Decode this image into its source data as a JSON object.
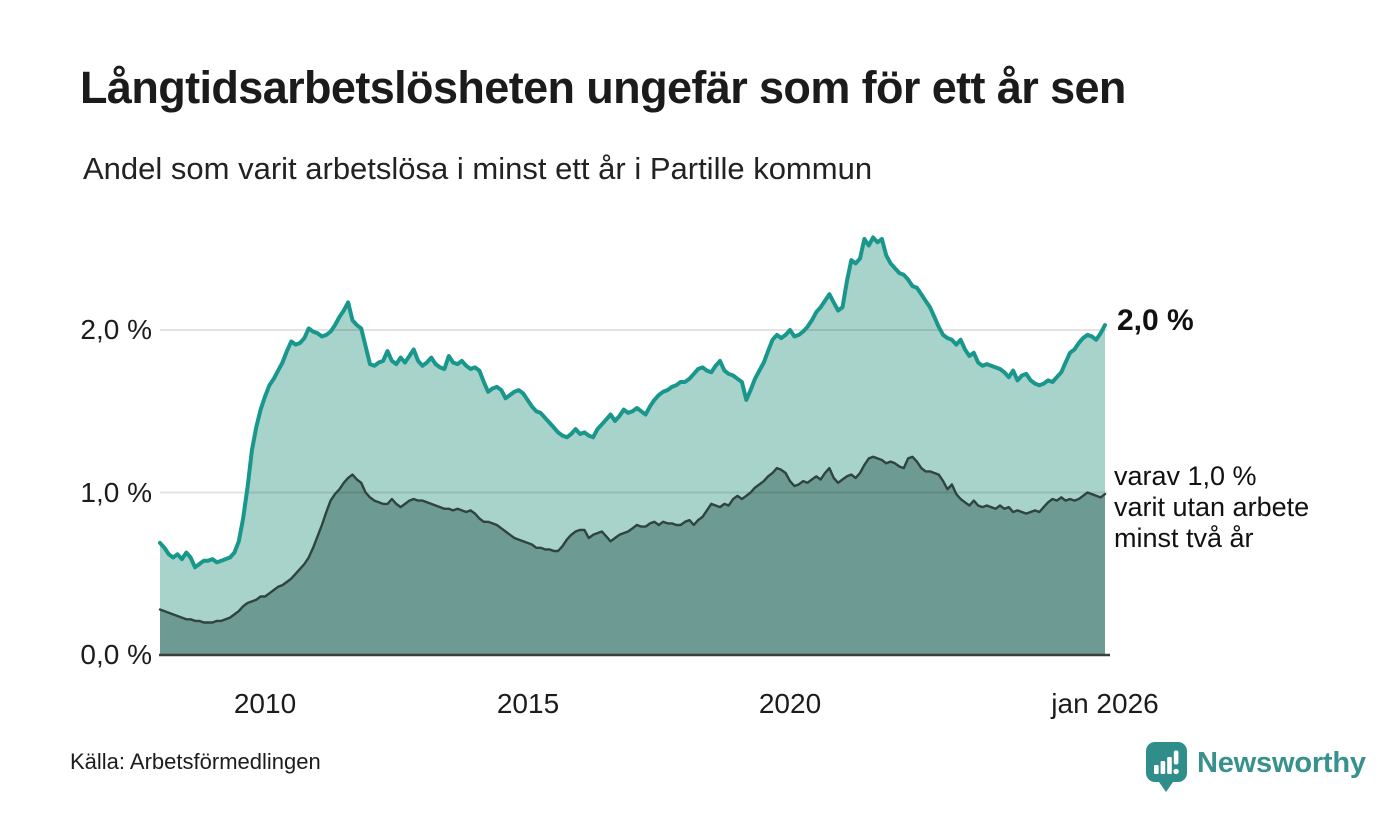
{
  "header": {
    "title": "Långtidsarbetslösheten ungefär som för ett år sen",
    "subtitle": "Andel som varit arbetslösa i minst ett år i Partille kommun"
  },
  "annotations": {
    "latest_value_label": "2,0 %",
    "secondary_label_lines": [
      "varav 1,0 %",
      "varit utan arbete",
      "minst två år"
    ]
  },
  "footer": {
    "source": "Källa: Arbetsförmedlingen",
    "brand": "Newsworthy"
  },
  "colors": {
    "primary_line": "#1a978c",
    "primary_fill": "#a8d3cb",
    "secondary_line": "#2f443e",
    "secondary_fill": "#6d9a92",
    "gridline": "#e3e3e3",
    "axis": "#3d3d3d",
    "text": "#1c1c1c",
    "brand_teal": "#38918c"
  },
  "chart_data": {
    "type": "area",
    "title": "Långtidsarbetslösheten ungefär som för ett år sen",
    "subtitle": "Andel som varit arbetslösa i minst ett år i Partille kommun",
    "unit": "%",
    "legend_position": "right-annotations",
    "grid": "horizontal",
    "x_axis": {
      "start_year": 2008,
      "end_year": 2026,
      "step_months": 1,
      "ticks": [
        {
          "year": 2010,
          "label": "2010"
        },
        {
          "year": 2015,
          "label": "2015"
        },
        {
          "year": 2020,
          "label": "2020"
        },
        {
          "year": 2026,
          "label": "jan 2026"
        }
      ]
    },
    "y_axis": {
      "min": 0,
      "max": 2.7,
      "ticks": [
        {
          "value": 0,
          "label": "0,0 %"
        },
        {
          "value": 1,
          "label": "1,0 %"
        },
        {
          "value": 2,
          "label": "2,0 %"
        }
      ],
      "gridlines": [
        1,
        2
      ]
    },
    "series": [
      {
        "id": "minst-ett-ar",
        "name": "Andel arbetslösa i minst ett år",
        "latest_value": 2.0,
        "latest_label": "2,0 %",
        "line_color": "#1a978c",
        "fill_color": "#a8d3cb",
        "values": [
          0.69,
          0.66,
          0.62,
          0.6,
          0.62,
          0.59,
          0.63,
          0.6,
          0.54,
          0.56,
          0.58,
          0.58,
          0.59,
          0.57,
          0.58,
          0.59,
          0.6,
          0.63,
          0.7,
          0.84,
          1.03,
          1.26,
          1.4,
          1.51,
          1.59,
          1.66,
          1.7,
          1.75,
          1.8,
          1.87,
          1.93,
          1.91,
          1.92,
          1.95,
          2.01,
          1.99,
          1.98,
          1.96,
          1.97,
          1.99,
          2.03,
          2.08,
          2.12,
          2.17,
          2.06,
          2.03,
          2.01,
          1.9,
          1.79,
          1.78,
          1.8,
          1.81,
          1.87,
          1.81,
          1.79,
          1.83,
          1.8,
          1.84,
          1.88,
          1.81,
          1.78,
          1.8,
          1.83,
          1.79,
          1.77,
          1.76,
          1.84,
          1.8,
          1.79,
          1.81,
          1.78,
          1.76,
          1.77,
          1.75,
          1.68,
          1.62,
          1.64,
          1.65,
          1.63,
          1.58,
          1.6,
          1.62,
          1.63,
          1.61,
          1.57,
          1.53,
          1.5,
          1.49,
          1.46,
          1.43,
          1.4,
          1.37,
          1.35,
          1.34,
          1.36,
          1.39,
          1.36,
          1.37,
          1.35,
          1.34,
          1.39,
          1.42,
          1.45,
          1.48,
          1.44,
          1.47,
          1.51,
          1.49,
          1.5,
          1.52,
          1.5,
          1.48,
          1.53,
          1.57,
          1.6,
          1.62,
          1.63,
          1.65,
          1.66,
          1.68,
          1.68,
          1.7,
          1.73,
          1.76,
          1.77,
          1.75,
          1.74,
          1.78,
          1.81,
          1.75,
          1.73,
          1.72,
          1.7,
          1.68,
          1.57,
          1.63,
          1.7,
          1.75,
          1.8,
          1.87,
          1.94,
          1.97,
          1.95,
          1.97,
          2.0,
          1.96,
          1.97,
          1.99,
          2.02,
          2.06,
          2.11,
          2.14,
          2.18,
          2.22,
          2.17,
          2.12,
          2.14,
          2.3,
          2.43,
          2.41,
          2.44,
          2.56,
          2.52,
          2.57,
          2.54,
          2.56,
          2.46,
          2.41,
          2.38,
          2.35,
          2.34,
          2.31,
          2.27,
          2.26,
          2.22,
          2.18,
          2.14,
          2.08,
          2.02,
          1.97,
          1.95,
          1.94,
          1.91,
          1.94,
          1.88,
          1.84,
          1.86,
          1.8,
          1.78,
          1.79,
          1.78,
          1.77,
          1.76,
          1.74,
          1.71,
          1.75,
          1.69,
          1.72,
          1.73,
          1.69,
          1.67,
          1.66,
          1.67,
          1.69,
          1.68,
          1.71,
          1.74,
          1.8,
          1.86,
          1.88,
          1.92,
          1.95,
          1.97,
          1.96,
          1.94,
          1.98,
          2.03
        ]
      },
      {
        "id": "minst-tva-ar",
        "name": "varav utan arbete i minst två år",
        "latest_value": 1.0,
        "latest_label": "varav 1,0 % varit utan arbete minst två år",
        "line_color": "#2f443e",
        "fill_color": "#6d9a92",
        "values": [
          0.28,
          0.27,
          0.26,
          0.25,
          0.24,
          0.23,
          0.22,
          0.22,
          0.21,
          0.21,
          0.2,
          0.2,
          0.2,
          0.21,
          0.21,
          0.22,
          0.23,
          0.25,
          0.27,
          0.3,
          0.32,
          0.33,
          0.34,
          0.36,
          0.36,
          0.38,
          0.4,
          0.42,
          0.43,
          0.45,
          0.47,
          0.5,
          0.53,
          0.56,
          0.6,
          0.66,
          0.73,
          0.8,
          0.88,
          0.95,
          0.99,
          1.02,
          1.06,
          1.09,
          1.11,
          1.08,
          1.06,
          1.0,
          0.97,
          0.95,
          0.94,
          0.93,
          0.93,
          0.96,
          0.93,
          0.91,
          0.93,
          0.95,
          0.96,
          0.95,
          0.95,
          0.94,
          0.93,
          0.92,
          0.91,
          0.9,
          0.9,
          0.89,
          0.9,
          0.89,
          0.88,
          0.89,
          0.87,
          0.84,
          0.82,
          0.82,
          0.81,
          0.8,
          0.78,
          0.76,
          0.74,
          0.72,
          0.71,
          0.7,
          0.69,
          0.68,
          0.66,
          0.66,
          0.65,
          0.65,
          0.64,
          0.64,
          0.67,
          0.71,
          0.74,
          0.76,
          0.77,
          0.77,
          0.72,
          0.74,
          0.75,
          0.76,
          0.73,
          0.7,
          0.72,
          0.74,
          0.75,
          0.76,
          0.78,
          0.8,
          0.79,
          0.79,
          0.81,
          0.82,
          0.8,
          0.82,
          0.81,
          0.81,
          0.8,
          0.8,
          0.82,
          0.83,
          0.8,
          0.83,
          0.85,
          0.89,
          0.93,
          0.92,
          0.91,
          0.93,
          0.92,
          0.96,
          0.98,
          0.96,
          0.98,
          1.0,
          1.03,
          1.05,
          1.07,
          1.1,
          1.12,
          1.15,
          1.14,
          1.12,
          1.07,
          1.04,
          1.05,
          1.07,
          1.06,
          1.08,
          1.1,
          1.08,
          1.12,
          1.15,
          1.09,
          1.06,
          1.08,
          1.1,
          1.11,
          1.09,
          1.12,
          1.17,
          1.21,
          1.22,
          1.21,
          1.2,
          1.18,
          1.19,
          1.18,
          1.16,
          1.15,
          1.21,
          1.22,
          1.19,
          1.15,
          1.13,
          1.13,
          1.12,
          1.11,
          1.07,
          1.02,
          1.05,
          0.99,
          0.96,
          0.94,
          0.92,
          0.95,
          0.92,
          0.91,
          0.92,
          0.91,
          0.9,
          0.92,
          0.9,
          0.91,
          0.88,
          0.89,
          0.88,
          0.87,
          0.88,
          0.89,
          0.88,
          0.91,
          0.94,
          0.96,
          0.95,
          0.97,
          0.95,
          0.96,
          0.95,
          0.96,
          0.98,
          1.0,
          0.99,
          0.98,
          0.97,
          0.99
        ]
      }
    ],
    "source": "Källa: Arbetsförmedlingen"
  }
}
